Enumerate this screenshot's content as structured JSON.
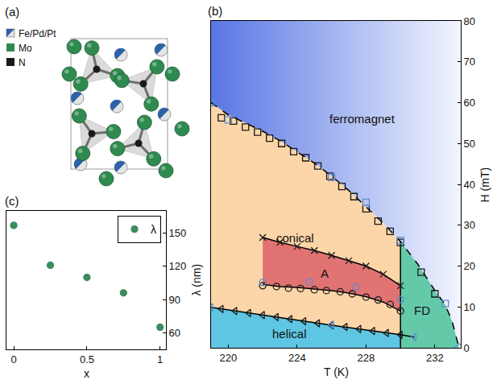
{
  "structure": {
    "panel": "(a)",
    "atoms": [
      {
        "label": "Fe/Pd/Pt",
        "colors": [
          "#2b62a8",
          "#e4e4e4"
        ]
      },
      {
        "label": "Mo",
        "color": "#2f8a4f"
      },
      {
        "label": "N",
        "color": "#1a1a1a"
      }
    ]
  },
  "chart_data": [
    {
      "panel": "(b)",
      "type": "scatter",
      "x_label": "T (K)",
      "y_label": "H (mT)",
      "xlim": [
        219,
        233.5
      ],
      "xticks": [
        220,
        224,
        228,
        232
      ],
      "ylim": [
        0,
        80
      ],
      "yticks": [
        0,
        10,
        20,
        30,
        40,
        50,
        60,
        70,
        80
      ],
      "grid": false,
      "regions": [
        {
          "name": "ferromagnet",
          "colors": [
            "#5876e4",
            "#f2f5fe"
          ],
          "x": [
            219,
            219,
            220,
            221,
            222,
            223,
            224,
            225,
            226,
            227,
            228,
            229,
            230,
            231,
            232,
            232.6,
            233,
            233.4,
            233.5,
            233.5
          ],
          "values": [
            80,
            60,
            57,
            55,
            53,
            50.7,
            48,
            45.2,
            42,
            38.5,
            34.5,
            30.5,
            26,
            20.5,
            14,
            10.5,
            6.5,
            0,
            0,
            80
          ]
        },
        {
          "name": "conical",
          "color": "#fcd6a8",
          "x": [
            219,
            220,
            221,
            222,
            223,
            224,
            225,
            226,
            227,
            228,
            229,
            230,
            230,
            226,
            222,
            219
          ],
          "values": [
            60,
            57,
            55,
            53,
            50.7,
            48,
            45.2,
            42,
            38.5,
            34.5,
            30.5,
            26,
            3.2,
            5.5,
            8,
            9.9
          ]
        },
        {
          "name": "helical",
          "color": "#5ec5e2",
          "x": [
            219,
            219,
            222,
            226,
            230,
            230
          ],
          "values": [
            0,
            9.9,
            8,
            5.5,
            3.2,
            0
          ]
        },
        {
          "name": "A",
          "color": "#e27373",
          "x": [
            222,
            223,
            224,
            225,
            226,
            227,
            228,
            229,
            230,
            230,
            229,
            228,
            227,
            226,
            225,
            224,
            223,
            222
          ],
          "values": [
            27,
            25.8,
            24.8,
            23.8,
            22.6,
            21.3,
            20,
            18,
            15.2,
            9,
            11.2,
            12.5,
            13.4,
            14,
            14.4,
            14.8,
            15,
            15.5
          ]
        },
        {
          "name": "FD",
          "color": "#63c9a9",
          "x": [
            230,
            230,
            231,
            232,
            232.6,
            233,
            233.4
          ],
          "values": [
            0,
            26,
            20.5,
            14,
            10.5,
            6.5,
            0
          ]
        }
      ],
      "series": [
        {
          "type": "line",
          "line_style": "dashed",
          "color": "#000000",
          "x": [
            219,
            220,
            221,
            222,
            223,
            224,
            225,
            226,
            227,
            228,
            229,
            230,
            231,
            232,
            232.6,
            233,
            233.4
          ],
          "values": [
            60,
            57,
            55,
            53,
            50.7,
            48,
            45.2,
            42,
            38.5,
            34.5,
            30.5,
            26,
            20.5,
            14,
            10.5,
            6.5,
            0
          ]
        },
        {
          "type": "line",
          "line_style": "solid",
          "color": "#000000",
          "x": [
            219,
            222,
            226,
            230,
            230.8
          ],
          "values": [
            9.9,
            8,
            5.5,
            3.2,
            2.6
          ]
        },
        {
          "type": "line",
          "line_style": "solid",
          "color": "#000000",
          "x": [
            222,
            223,
            224,
            225,
            226,
            227,
            228,
            229,
            230
          ],
          "values": [
            27,
            25.8,
            24.8,
            23.8,
            22.6,
            21.3,
            20,
            18,
            15.2
          ]
        },
        {
          "type": "line",
          "line_style": "solid",
          "color": "#000000",
          "x": [
            222,
            223,
            224,
            225,
            226,
            227,
            228,
            229,
            230
          ],
          "values": [
            15.5,
            15,
            14.8,
            14.4,
            14,
            13.4,
            12.5,
            11.2,
            9
          ]
        },
        {
          "type": "line",
          "line_style": "solid",
          "color": "#000000",
          "x": [
            230,
            230
          ],
          "values": [
            0,
            26
          ]
        },
        {
          "type": "scatter",
          "marker": "square-open",
          "color": "#1a1a1a",
          "x": [
            219.6,
            220.3,
            221,
            221.7,
            222.4,
            223.1,
            223.8,
            224.5,
            225.2,
            225.9,
            226.6,
            227.3,
            228,
            228.7,
            229.4,
            230,
            231.2,
            232
          ],
          "values": [
            56.3,
            55.5,
            54,
            52.8,
            51.3,
            50,
            48,
            46.5,
            44.5,
            42,
            39.5,
            37,
            34,
            31,
            28.5,
            25.8,
            18.5,
            13.2
          ]
        },
        {
          "type": "scatter",
          "marker": "square-open",
          "color": "#5b8fd0",
          "x": [
            219,
            220,
            226,
            228,
            230,
            232.6
          ],
          "values": [
            60,
            55.8,
            41.7,
            35.6,
            26.3,
            10.8
          ]
        },
        {
          "type": "scatter",
          "marker": "x-thin-open",
          "color": "#1a1a1a",
          "x": [
            222,
            223,
            224,
            225,
            226,
            227,
            228,
            229,
            230
          ],
          "values": [
            27,
            25.8,
            24.8,
            23.8,
            22.6,
            21.3,
            20,
            18,
            15.2
          ]
        },
        {
          "type": "scatter",
          "marker": "circle-open",
          "color": "#1a1a1a",
          "x": [
            222,
            222.8,
            223.5,
            224.2,
            225,
            225.7,
            226.5,
            227.2,
            228,
            228.7,
            229.4,
            230
          ],
          "values": [
            15.2,
            15,
            14.6,
            14.5,
            14.2,
            14,
            13.7,
            13.2,
            12.4,
            11.7,
            10.6,
            9
          ]
        },
        {
          "type": "scatter",
          "marker": "circle-open",
          "color": "#5b8fd0",
          "x": [
            222,
            224.7,
            227.4,
            230
          ],
          "values": [
            16,
            16.2,
            14.8,
            11.8
          ]
        },
        {
          "type": "scatter",
          "marker": "triangle-left-open",
          "color": "#1a1a1a",
          "x": [
            219.6,
            220.4,
            221.2,
            222,
            222.8,
            223.6,
            224.4,
            225.2,
            226,
            226.8,
            227.6,
            228.4,
            229.2,
            230
          ],
          "values": [
            9.5,
            9,
            8.5,
            8,
            7.5,
            7,
            6.5,
            6,
            5.5,
            5.1,
            4.6,
            4.1,
            3.6,
            3.2
          ]
        },
        {
          "type": "scatter",
          "marker": "triangle-left-open",
          "color": "#5b8fd0",
          "x": [
            219,
            226,
            230.8
          ],
          "values": [
            9.9,
            5.7,
            2.6
          ]
        },
        {
          "type": "scatter",
          "marker": "diamond-open",
          "color": "#5b8fd0",
          "x": [
            233.4
          ],
          "values": [
            0
          ]
        }
      ]
    },
    {
      "panel": "(c)",
      "type": "scatter",
      "x_label": "x",
      "y_label": "λ (nm)",
      "xlim": [
        -0.05,
        1.04
      ],
      "xticks": [
        0,
        0.5,
        1
      ],
      "ylim": [
        45,
        170
      ],
      "yticks": [
        60,
        90,
        120,
        150
      ],
      "grid": false,
      "legend": "top right",
      "series": [
        {
          "name": "λ",
          "type": "scatter",
          "marker": "circle",
          "color": "#3a8d5c",
          "x": [
            0,
            0.25,
            0.5,
            0.75,
            1
          ],
          "values": [
            157,
            121,
            110,
            96,
            65
          ]
        }
      ]
    }
  ]
}
